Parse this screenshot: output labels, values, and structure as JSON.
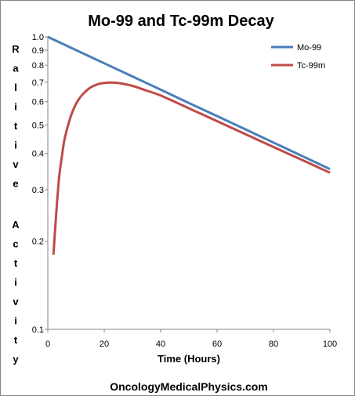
{
  "chart_data": {
    "type": "line",
    "title": "Mo-99 and Tc-99m Decay",
    "xlabel": "Time (Hours)",
    "ylabel": "Ralitive Activity",
    "xlim": [
      0,
      100
    ],
    "ylim": [
      0.1,
      1.0
    ],
    "y_scale": "log",
    "x_ticks": [
      "0",
      "20",
      "40",
      "60",
      "80",
      "100"
    ],
    "y_ticks": [
      "0.1",
      "0.2",
      "0.3",
      "0.4",
      "0.5",
      "0.6",
      "0.7",
      "0.8",
      "0.9",
      "1.0"
    ],
    "grid": false,
    "legend_position": "top-right",
    "series": [
      {
        "name": "Mo-99",
        "color": "#4A7EBB",
        "x": [
          0,
          10,
          20,
          30,
          40,
          50,
          60,
          70,
          80,
          90,
          100
        ],
        "y": [
          1.0,
          0.901,
          0.812,
          0.732,
          0.66,
          0.594,
          0.536,
          0.483,
          0.435,
          0.392,
          0.353
        ]
      },
      {
        "name": "Tc-99m",
        "color": "#BE4B48",
        "x": [
          2,
          3,
          4,
          5,
          6,
          8,
          10,
          12,
          15,
          18,
          20,
          22,
          25,
          30,
          35,
          40,
          50,
          60,
          70,
          80,
          90,
          100
        ],
        "y": [
          0.18,
          0.25,
          0.33,
          0.39,
          0.45,
          0.53,
          0.59,
          0.63,
          0.67,
          0.69,
          0.695,
          0.698,
          0.695,
          0.68,
          0.655,
          0.63,
          0.57,
          0.515,
          0.465,
          0.42,
          0.38,
          0.343
        ]
      }
    ],
    "footer": "OncologyMedicalPhysics.com"
  }
}
